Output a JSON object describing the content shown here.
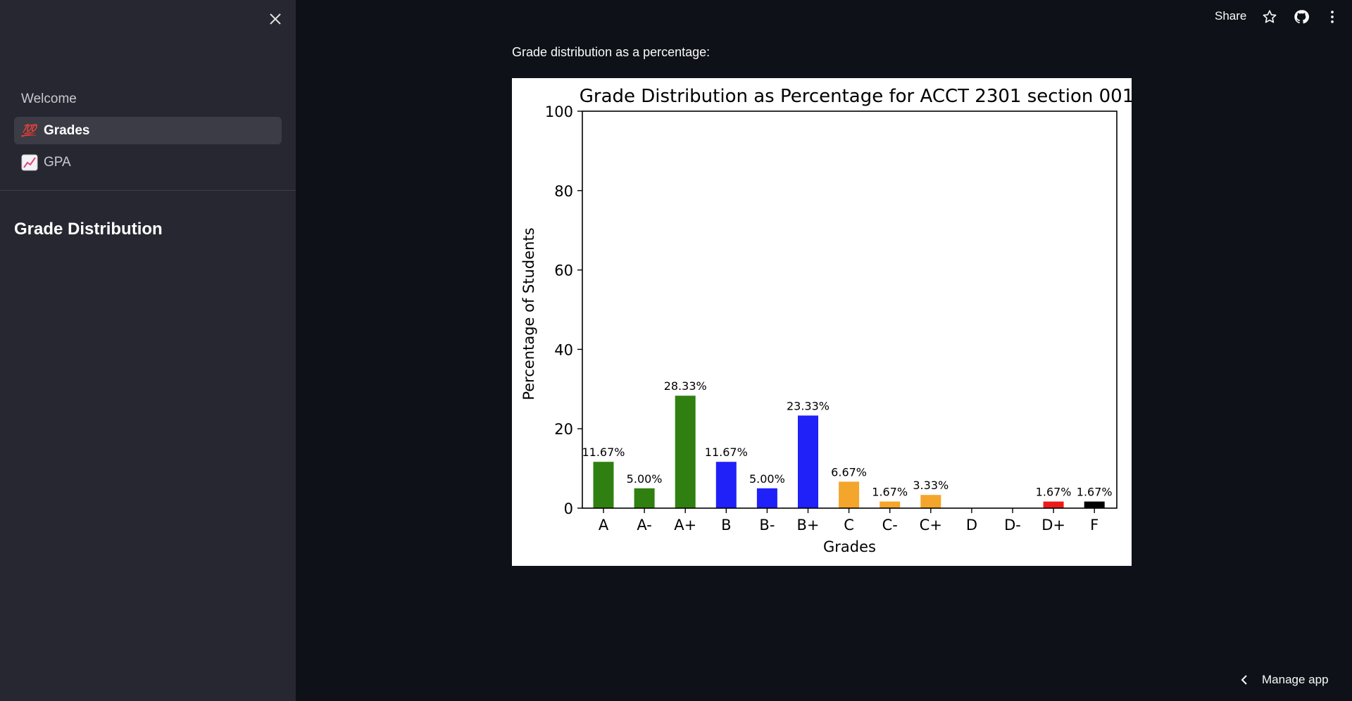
{
  "sidebar": {
    "nav_items": [
      {
        "label": "Welcome",
        "emoji": "",
        "active": false
      },
      {
        "label": "Grades",
        "emoji": "💯",
        "active": true
      },
      {
        "label": "GPA",
        "emoji": "📈",
        "active": false
      }
    ],
    "heading": "Grade Distribution"
  },
  "header": {
    "share_label": "Share",
    "icons": [
      "star-icon",
      "github-icon",
      "more-vertical-icon"
    ]
  },
  "main": {
    "caption": "Grade distribution as a percentage:"
  },
  "footer": {
    "manage_label": "Manage app"
  },
  "colors": {
    "background": "#0e1117",
    "sidebar": "#262730",
    "green": "#2f8010",
    "blue": "#2020f8",
    "orange": "#f4a52c",
    "red": "#ee1a1a",
    "black": "#000000"
  },
  "chart_data": {
    "type": "bar",
    "title": "Grade Distribution as Percentage for ACCT 2301 section 001",
    "xlabel": "Grades",
    "ylabel": "Percentage of Students",
    "ylim": [
      0,
      100
    ],
    "yticks": [
      0,
      20,
      40,
      60,
      80,
      100
    ],
    "categories": [
      "A",
      "A-",
      "A+",
      "B",
      "B-",
      "B+",
      "C",
      "C-",
      "C+",
      "D",
      "D-",
      "D+",
      "F"
    ],
    "values": [
      11.67,
      5.0,
      28.33,
      11.67,
      5.0,
      23.33,
      6.67,
      1.67,
      3.33,
      0,
      0,
      1.67,
      1.67
    ],
    "labels": [
      "11.67%",
      "5.00%",
      "28.33%",
      "11.67%",
      "5.00%",
      "23.33%",
      "6.67%",
      "1.67%",
      "3.33%",
      "",
      "",
      "1.67%",
      "1.67%"
    ],
    "bar_colors": [
      "#2f8010",
      "#2f8010",
      "#2f8010",
      "#2020f8",
      "#2020f8",
      "#2020f8",
      "#f4a52c",
      "#f4a52c",
      "#f4a52c",
      "#ee1a1a",
      "#ee1a1a",
      "#ee1a1a",
      "#000000"
    ],
    "grid": false
  }
}
